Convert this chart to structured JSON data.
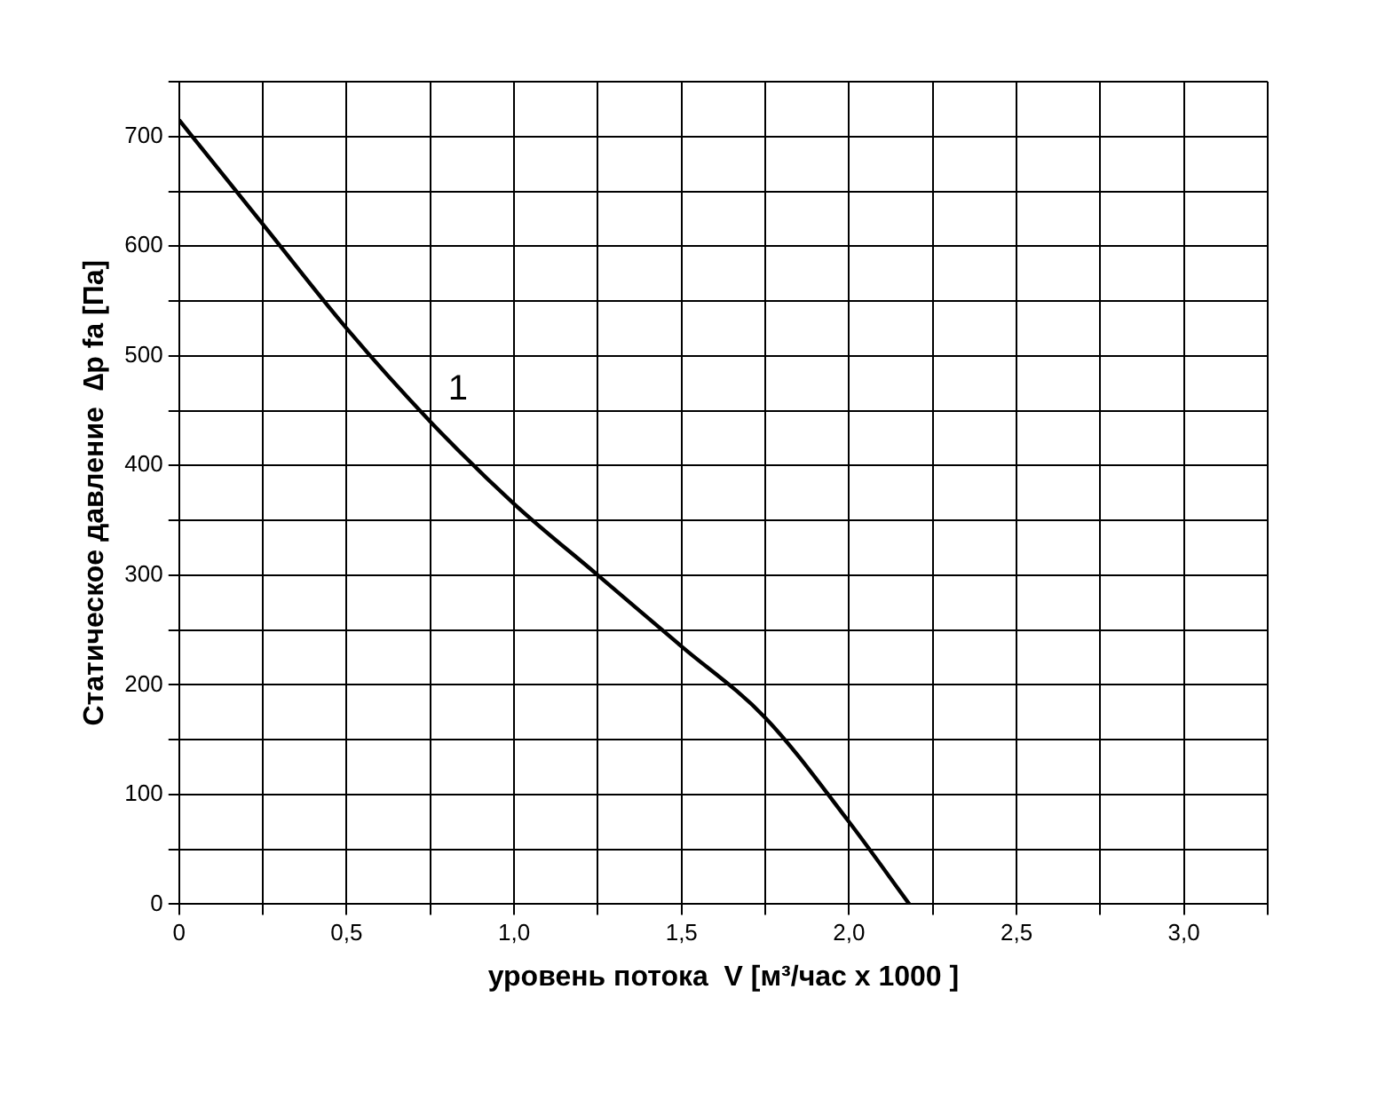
{
  "chart_data": {
    "type": "line",
    "xlabel": "уровень потока  V [м³/час x 1000 ]",
    "ylabel": "Статическое давление  ∆p fa [Па]",
    "x": [
      0,
      0.25,
      0.5,
      0.75,
      1.0,
      1.25,
      1.5,
      1.75,
      2.0,
      2.18
    ],
    "series": [
      {
        "name": "1",
        "color": "#000000",
        "values": [
          715,
          620,
          525,
          440,
          365,
          300,
          235,
          170,
          75,
          0
        ]
      }
    ],
    "xlim": [
      0,
      3.25
    ],
    "xticks": [
      {
        "value": 0,
        "label": "0"
      },
      {
        "value": 0.25,
        "label": null
      },
      {
        "value": 0.5,
        "label": "0,5"
      },
      {
        "value": 0.75,
        "label": null
      },
      {
        "value": 1,
        "label": "1,0"
      },
      {
        "value": 1.25,
        "label": null
      },
      {
        "value": 1.5,
        "label": "1,5"
      },
      {
        "value": 1.75,
        "label": null
      },
      {
        "value": 2,
        "label": "2,0"
      },
      {
        "value": 2.25,
        "label": null
      },
      {
        "value": 2.5,
        "label": "2,5"
      },
      {
        "value": 2.75,
        "label": null
      },
      {
        "value": 3,
        "label": "3,0"
      },
      {
        "value": 3.25,
        "label": null
      }
    ],
    "ylim": [
      0,
      750
    ],
    "yticks": [
      0,
      {
        "value": 50,
        "label": null
      },
      100,
      {
        "value": 150,
        "label": null
      },
      200,
      {
        "value": 250,
        "label": null
      },
      300,
      {
        "value": 350,
        "label": null
      },
      400,
      {
        "value": 450,
        "label": null
      },
      500,
      {
        "value": 550,
        "label": null
      },
      600,
      {
        "value": 650,
        "label": null
      },
      700,
      {
        "value": 750,
        "label": null
      }
    ],
    "grid": true,
    "legend": false,
    "marker": "none",
    "line_style": "solid"
  }
}
